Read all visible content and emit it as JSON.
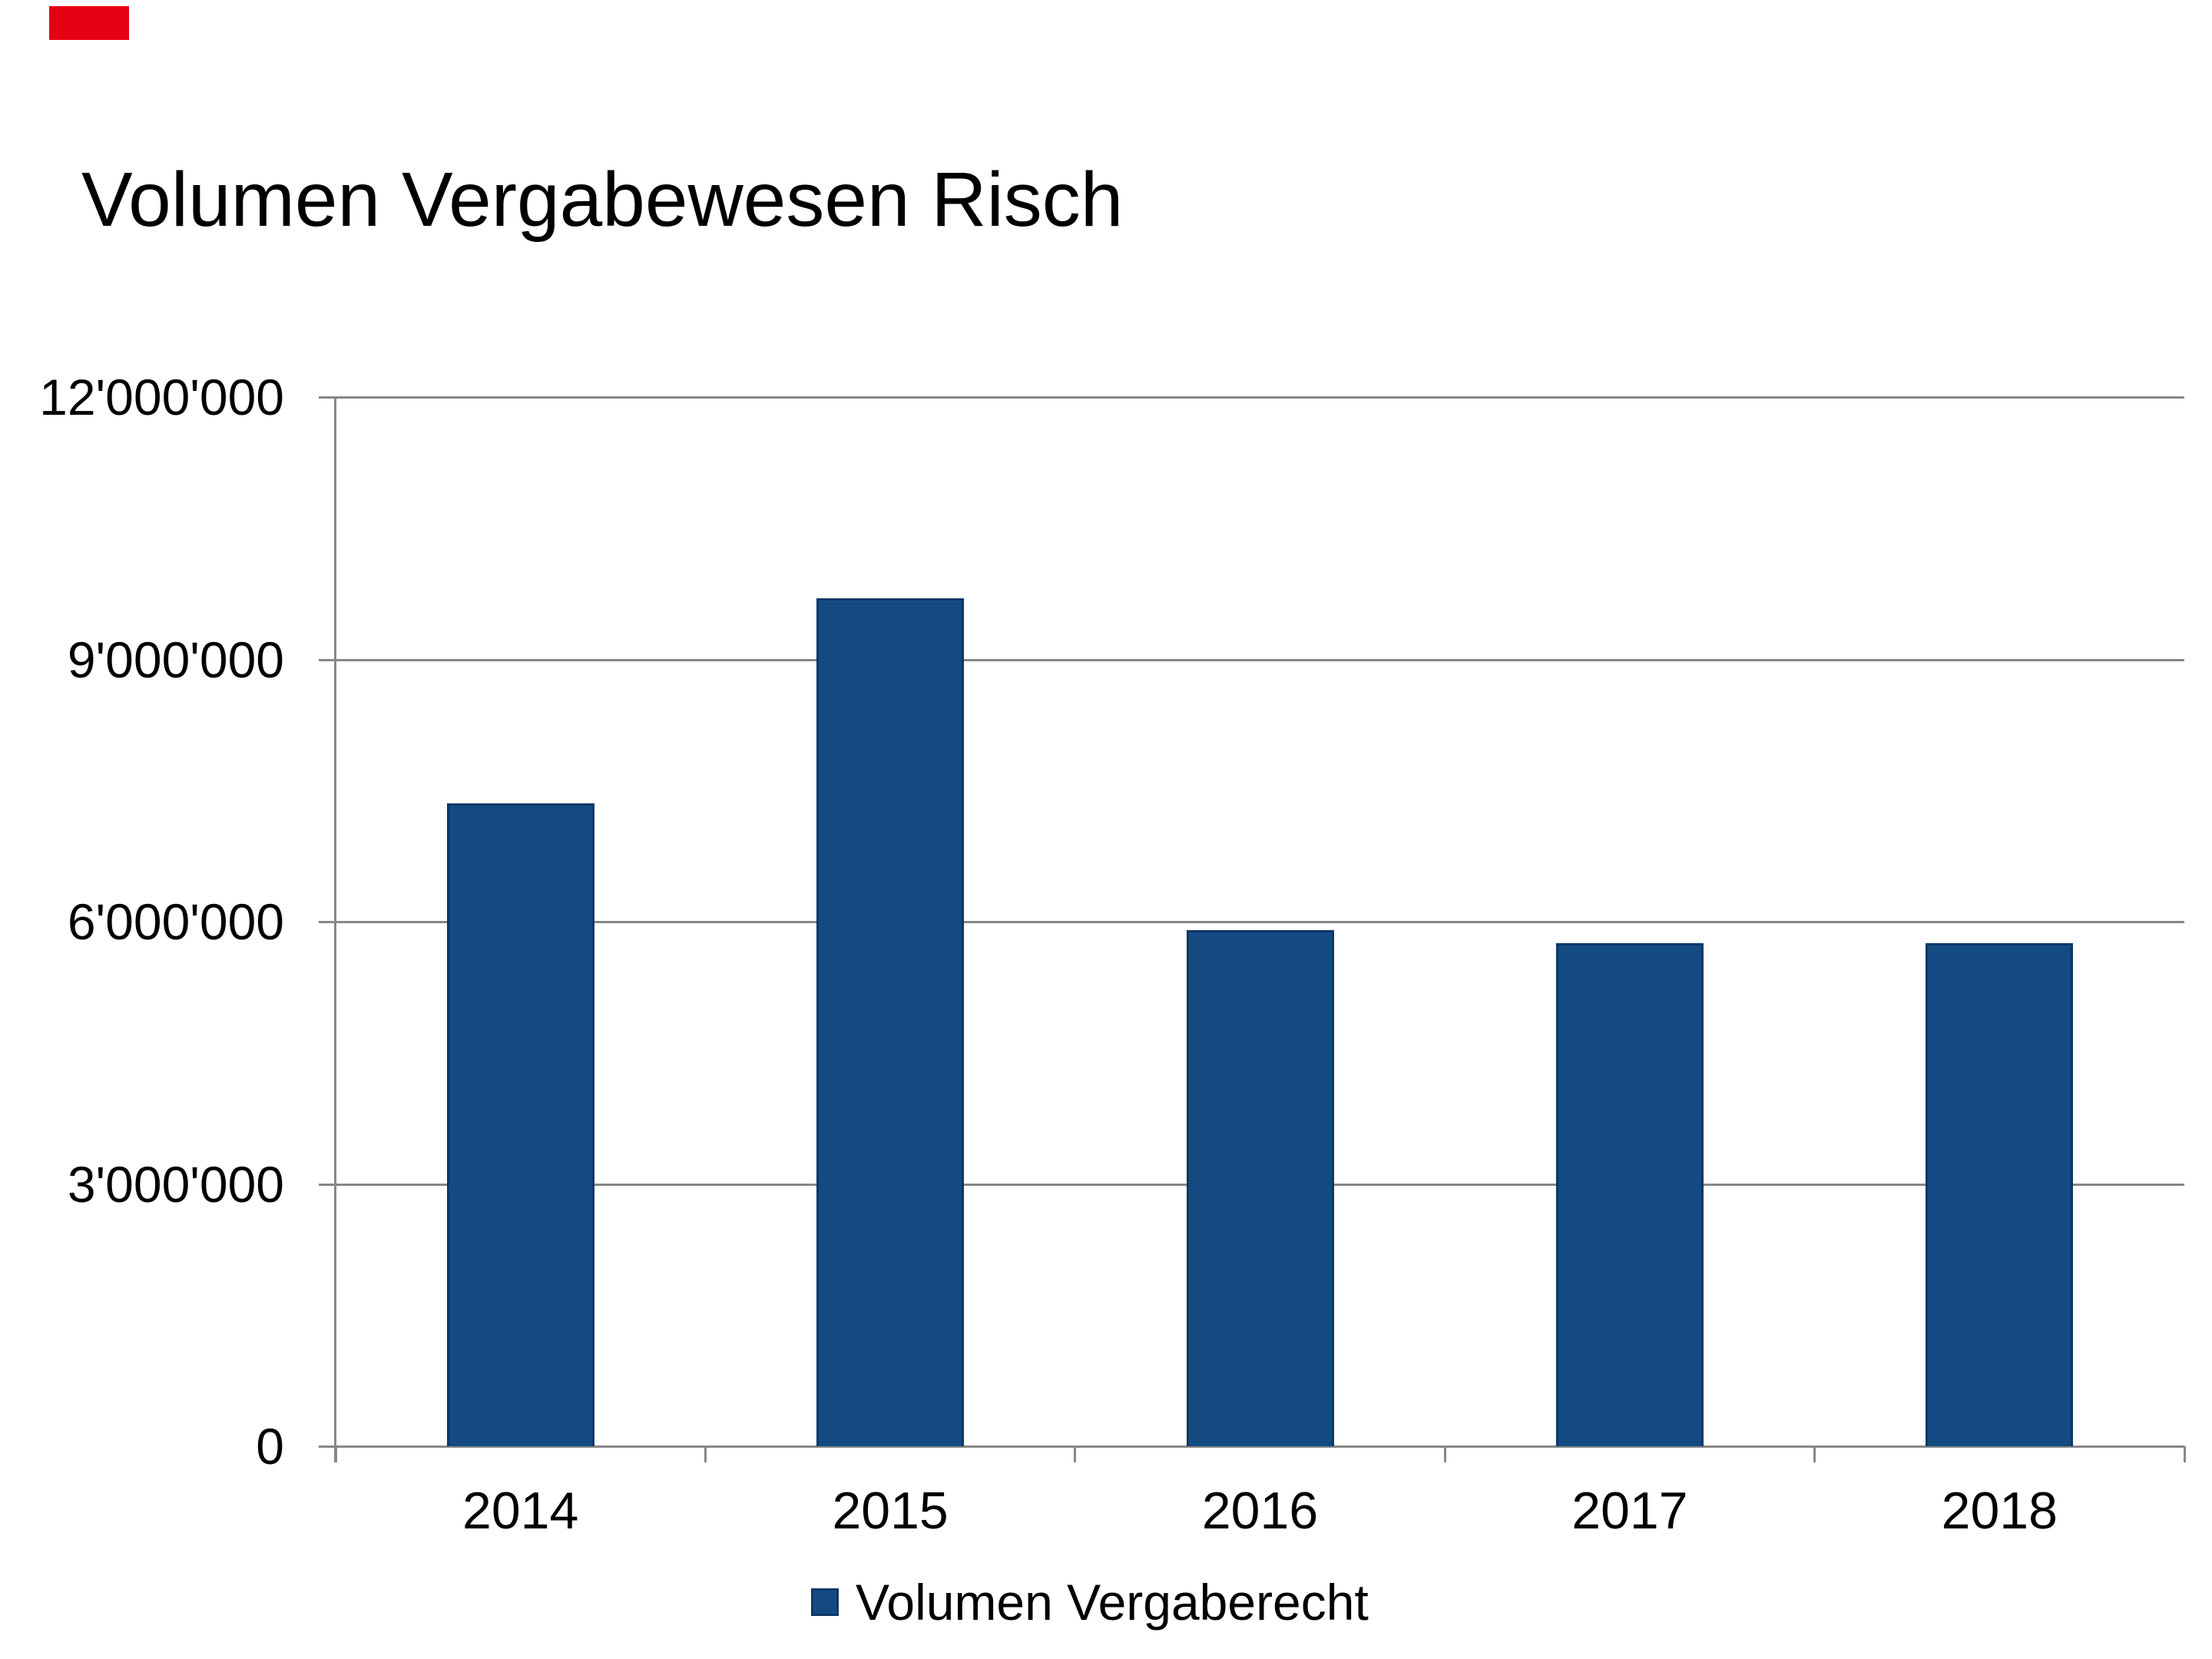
{
  "chart_data": {
    "type": "bar",
    "title": "Volumen Vergabewesen Risch",
    "categories": [
      "2014",
      "2015",
      "2016",
      "2017",
      "2018"
    ],
    "series": [
      {
        "name": "Volumen Vergaberecht",
        "values": [
          7350000,
          9700000,
          5900000,
          5750000,
          5750000
        ]
      }
    ],
    "xlabel": "",
    "ylabel": "",
    "ylim": [
      0,
      12000000
    ],
    "ytick_interval": 3000000,
    "yticks": [
      {
        "value": 0,
        "label": "0"
      },
      {
        "value": 3000000,
        "label": "3'000'000"
      },
      {
        "value": 6000000,
        "label": "6'000'000"
      },
      {
        "value": 9000000,
        "label": "9'000'000"
      },
      {
        "value": 12000000,
        "label": "12'000'000"
      }
    ],
    "grid": true,
    "legend_position": "bottom",
    "colors": {
      "bar_fill": "#144a82",
      "bar_border": "#0d3766",
      "gridline": "#878787",
      "axis": "#878787",
      "text": "#000000",
      "background": "#ffffff",
      "red_mark": "#e60013"
    }
  }
}
